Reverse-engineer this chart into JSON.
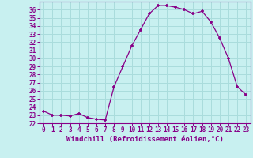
{
  "x": [
    0,
    1,
    2,
    3,
    4,
    5,
    6,
    7,
    8,
    9,
    10,
    11,
    12,
    13,
    14,
    15,
    16,
    17,
    18,
    19,
    20,
    21,
    22,
    23
  ],
  "y": [
    23.5,
    23.0,
    23.0,
    22.9,
    23.2,
    22.7,
    22.5,
    22.4,
    26.5,
    29.0,
    31.5,
    33.5,
    35.5,
    36.5,
    36.5,
    36.3,
    36.0,
    35.5,
    35.8,
    34.5,
    32.5,
    30.0,
    26.5,
    25.5
  ],
  "line_color": "#880088",
  "marker_color": "#880088",
  "bg_color": "#c8f0f0",
  "grid_color": "#aadcdc",
  "xlabel": "Windchill (Refroidissement éolien,°C)",
  "xlim": [
    -0.5,
    23.5
  ],
  "ylim": [
    22.0,
    37.0
  ],
  "yticks": [
    22,
    23,
    24,
    25,
    26,
    27,
    28,
    29,
    30,
    31,
    32,
    33,
    34,
    35,
    36
  ],
  "xticks": [
    0,
    1,
    2,
    3,
    4,
    5,
    6,
    7,
    8,
    9,
    10,
    11,
    12,
    13,
    14,
    15,
    16,
    17,
    18,
    19,
    20,
    21,
    22,
    23
  ],
  "tick_color": "#880088",
  "label_color": "#880088",
  "axis_color": "#880088",
  "font_size_ticks": 5.5,
  "font_size_xlabel": 6.5
}
